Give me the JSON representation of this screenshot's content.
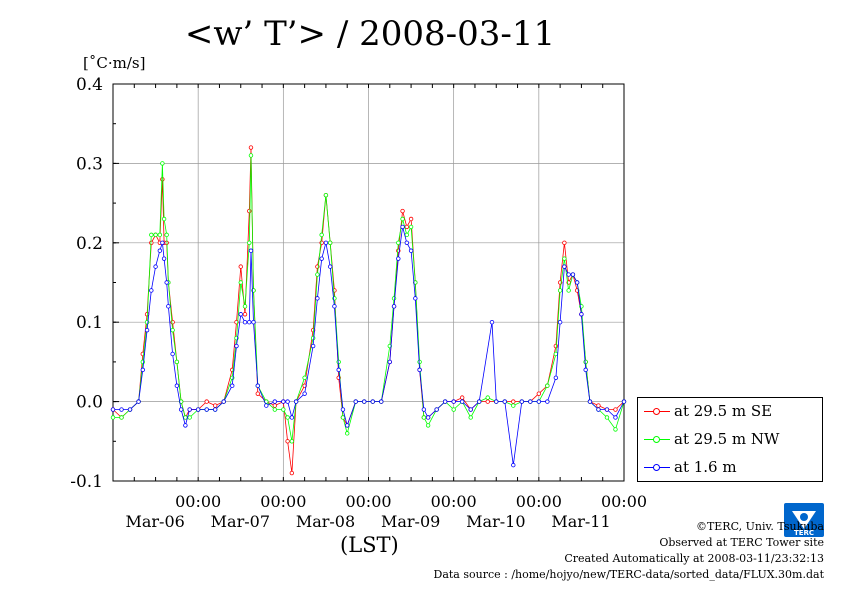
{
  "title": "<w’ T’> / 2008-03-11",
  "unit_label": "[˚C·m/s]",
  "x_axis_label": "(LST)",
  "legend": [
    {
      "label": "at 29.5 m SE",
      "color": "#ff0000"
    },
    {
      "label": "at 29.5 m NW",
      "color": "#00ff00"
    },
    {
      "label": "at 1.6 m",
      "color": "#0000ff"
    }
  ],
  "credits": {
    "copyright": "©TERC, Univ. Tsukuba",
    "site": "Observed at TERC Tower site",
    "created": "Created Automatically at 2008-03-11/23:32:13",
    "source": "Data source : /home/hojyo/new/TERC-data/sorted_data/FLUX.30m.dat"
  },
  "logo": {
    "text": "TERC",
    "color": "#0066cc",
    "icon": "terc-logo"
  },
  "chart_data": {
    "type": "line",
    "title": "<w’ T’> / 2008-03-11",
    "ylabel": "[˚C·m/s]",
    "xlabel": "(LST)",
    "xlim_days": [
      0,
      6
    ],
    "x_unit": "days from 2008-03-06 00:00 LST",
    "ylim": [
      -0.1,
      0.4
    ],
    "y_ticks": [
      -0.1,
      0.0,
      0.1,
      0.2,
      0.3,
      0.4
    ],
    "y_tick_labels": [
      "-0.1",
      "0.0",
      "0.1",
      "0.2",
      "0.3",
      "0.4"
    ],
    "x_ticks": [
      {
        "day": 1,
        "time": "00:00",
        "date": "Mar-06"
      },
      {
        "day": 2,
        "time": "00:00",
        "date": "Mar-07"
      },
      {
        "day": 3,
        "time": "00:00",
        "date": "Mar-08"
      },
      {
        "day": 4,
        "time": "00:00",
        "date": "Mar-09"
      },
      {
        "day": 5,
        "time": "00:00",
        "date": "Mar-10"
      },
      {
        "day": 6,
        "time": "00:00",
        "date": "Mar-11"
      }
    ],
    "grid": true,
    "legend_position": "right",
    "series": [
      {
        "name": "at 29.5 m SE",
        "color": "#ff0000",
        "points": [
          [
            0.0,
            -0.01
          ],
          [
            0.1,
            -0.02
          ],
          [
            0.2,
            -0.01
          ],
          [
            0.3,
            0.0
          ],
          [
            0.35,
            0.06
          ],
          [
            0.4,
            0.11
          ],
          [
            0.45,
            0.2
          ],
          [
            0.5,
            0.21
          ],
          [
            0.55,
            0.2
          ],
          [
            0.58,
            0.28
          ],
          [
            0.6,
            0.2
          ],
          [
            0.63,
            0.2
          ],
          [
            0.65,
            0.15
          ],
          [
            0.7,
            0.1
          ],
          [
            0.75,
            0.05
          ],
          [
            0.8,
            0.0
          ],
          [
            0.85,
            -0.02
          ],
          [
            0.9,
            -0.01
          ],
          [
            1.0,
            -0.01
          ],
          [
            1.1,
            0.0
          ],
          [
            1.2,
            -0.005
          ],
          [
            1.3,
            0.0
          ],
          [
            1.4,
            0.04
          ],
          [
            1.45,
            0.1
          ],
          [
            1.5,
            0.17
          ],
          [
            1.55,
            0.11
          ],
          [
            1.6,
            0.24
          ],
          [
            1.62,
            0.32
          ],
          [
            1.65,
            0.14
          ],
          [
            1.7,
            0.01
          ],
          [
            1.8,
            0.0
          ],
          [
            1.9,
            -0.005
          ],
          [
            2.0,
            0.0
          ],
          [
            2.05,
            -0.05
          ],
          [
            2.1,
            -0.09
          ],
          [
            2.15,
            0.0
          ],
          [
            2.25,
            0.02
          ],
          [
            2.35,
            0.09
          ],
          [
            2.4,
            0.17
          ],
          [
            2.45,
            0.2
          ],
          [
            2.5,
            0.26
          ],
          [
            2.55,
            0.2
          ],
          [
            2.6,
            0.14
          ],
          [
            2.65,
            0.03
          ],
          [
            2.7,
            -0.02
          ],
          [
            2.75,
            -0.03
          ],
          [
            2.85,
            0.0
          ],
          [
            2.95,
            0.0
          ],
          [
            3.05,
            0.0
          ],
          [
            3.15,
            0.0
          ],
          [
            3.25,
            0.05
          ],
          [
            3.3,
            0.12
          ],
          [
            3.35,
            0.19
          ],
          [
            3.4,
            0.24
          ],
          [
            3.45,
            0.22
          ],
          [
            3.5,
            0.23
          ],
          [
            3.55,
            0.15
          ],
          [
            3.6,
            0.04
          ],
          [
            3.65,
            -0.02
          ],
          [
            3.7,
            -0.02
          ],
          [
            3.8,
            -0.01
          ],
          [
            3.9,
            0.0
          ],
          [
            4.0,
            0.0
          ],
          [
            4.1,
            0.005
          ],
          [
            4.2,
            -0.01
          ],
          [
            4.3,
            0.0
          ],
          [
            4.4,
            0.0
          ],
          [
            4.5,
            0.0
          ],
          [
            4.6,
            0.0
          ],
          [
            4.7,
            0.0
          ],
          [
            4.8,
            0.0
          ],
          [
            4.9,
            0.0
          ],
          [
            5.0,
            0.01
          ],
          [
            5.1,
            0.02
          ],
          [
            5.2,
            0.07
          ],
          [
            5.25,
            0.15
          ],
          [
            5.3,
            0.2
          ],
          [
            5.35,
            0.15
          ],
          [
            5.4,
            0.16
          ],
          [
            5.45,
            0.14
          ],
          [
            5.5,
            0.11
          ],
          [
            5.55,
            0.05
          ],
          [
            5.6,
            0.0
          ],
          [
            5.7,
            -0.005
          ],
          [
            5.8,
            -0.01
          ],
          [
            5.9,
            -0.01
          ],
          [
            6.0,
            0.0
          ]
        ]
      },
      {
        "name": "at 29.5 m NW",
        "color": "#00ff00",
        "points": [
          [
            0.0,
            -0.02
          ],
          [
            0.1,
            -0.02
          ],
          [
            0.2,
            -0.01
          ],
          [
            0.3,
            0.0
          ],
          [
            0.35,
            0.05
          ],
          [
            0.4,
            0.1
          ],
          [
            0.45,
            0.21
          ],
          [
            0.5,
            0.21
          ],
          [
            0.55,
            0.21
          ],
          [
            0.58,
            0.3
          ],
          [
            0.6,
            0.23
          ],
          [
            0.63,
            0.21
          ],
          [
            0.65,
            0.15
          ],
          [
            0.7,
            0.09
          ],
          [
            0.75,
            0.05
          ],
          [
            0.8,
            0.0
          ],
          [
            0.85,
            -0.02
          ],
          [
            0.9,
            -0.02
          ],
          [
            1.0,
            -0.01
          ],
          [
            1.1,
            -0.01
          ],
          [
            1.2,
            -0.01
          ],
          [
            1.3,
            0.0
          ],
          [
            1.4,
            0.03
          ],
          [
            1.45,
            0.08
          ],
          [
            1.5,
            0.15
          ],
          [
            1.55,
            0.12
          ],
          [
            1.6,
            0.2
          ],
          [
            1.62,
            0.31
          ],
          [
            1.65,
            0.14
          ],
          [
            1.7,
            0.02
          ],
          [
            1.8,
            0.0
          ],
          [
            1.9,
            -0.01
          ],
          [
            2.0,
            -0.01
          ],
          [
            2.05,
            -0.02
          ],
          [
            2.1,
            -0.05
          ],
          [
            2.15,
            0.0
          ],
          [
            2.25,
            0.03
          ],
          [
            2.35,
            0.08
          ],
          [
            2.4,
            0.16
          ],
          [
            2.45,
            0.21
          ],
          [
            2.5,
            0.26
          ],
          [
            2.55,
            0.2
          ],
          [
            2.6,
            0.13
          ],
          [
            2.65,
            0.05
          ],
          [
            2.7,
            -0.02
          ],
          [
            2.75,
            -0.04
          ],
          [
            2.85,
            0.0
          ],
          [
            2.95,
            0.0
          ],
          [
            3.05,
            0.0
          ],
          [
            3.15,
            0.0
          ],
          [
            3.25,
            0.07
          ],
          [
            3.3,
            0.13
          ],
          [
            3.35,
            0.2
          ],
          [
            3.4,
            0.23
          ],
          [
            3.45,
            0.21
          ],
          [
            3.5,
            0.22
          ],
          [
            3.55,
            0.15
          ],
          [
            3.6,
            0.05
          ],
          [
            3.65,
            -0.02
          ],
          [
            3.7,
            -0.03
          ],
          [
            3.8,
            -0.01
          ],
          [
            3.9,
            0.0
          ],
          [
            4.0,
            -0.01
          ],
          [
            4.1,
            0.0
          ],
          [
            4.2,
            -0.02
          ],
          [
            4.3,
            0.0
          ],
          [
            4.4,
            0.005
          ],
          [
            4.5,
            0.0
          ],
          [
            4.6,
            0.0
          ],
          [
            4.7,
            -0.005
          ],
          [
            4.8,
            0.0
          ],
          [
            4.9,
            0.0
          ],
          [
            5.0,
            0.0
          ],
          [
            5.1,
            0.02
          ],
          [
            5.2,
            0.06
          ],
          [
            5.25,
            0.14
          ],
          [
            5.3,
            0.18
          ],
          [
            5.35,
            0.14
          ],
          [
            5.4,
            0.16
          ],
          [
            5.45,
            0.15
          ],
          [
            5.5,
            0.12
          ],
          [
            5.55,
            0.05
          ],
          [
            5.6,
            0.0
          ],
          [
            5.7,
            -0.01
          ],
          [
            5.8,
            -0.02
          ],
          [
            5.9,
            -0.035
          ],
          [
            6.0,
            0.0
          ]
        ]
      },
      {
        "name": "at 1.6 m",
        "color": "#0000ff",
        "points": [
          [
            0.0,
            -0.01
          ],
          [
            0.1,
            -0.01
          ],
          [
            0.2,
            -0.01
          ],
          [
            0.3,
            0.0
          ],
          [
            0.35,
            0.04
          ],
          [
            0.4,
            0.09
          ],
          [
            0.45,
            0.14
          ],
          [
            0.5,
            0.17
          ],
          [
            0.55,
            0.19
          ],
          [
            0.58,
            0.2
          ],
          [
            0.6,
            0.18
          ],
          [
            0.63,
            0.15
          ],
          [
            0.65,
            0.12
          ],
          [
            0.7,
            0.06
          ],
          [
            0.75,
            0.02
          ],
          [
            0.8,
            -0.01
          ],
          [
            0.85,
            -0.03
          ],
          [
            0.9,
            -0.01
          ],
          [
            1.0,
            -0.01
          ],
          [
            1.1,
            -0.01
          ],
          [
            1.2,
            -0.01
          ],
          [
            1.3,
            0.0
          ],
          [
            1.4,
            0.02
          ],
          [
            1.45,
            0.07
          ],
          [
            1.5,
            0.11
          ],
          [
            1.55,
            0.1
          ],
          [
            1.6,
            0.1
          ],
          [
            1.62,
            0.19
          ],
          [
            1.65,
            0.1
          ],
          [
            1.7,
            0.02
          ],
          [
            1.8,
            -0.005
          ],
          [
            1.9,
            0.0
          ],
          [
            2.0,
            0.0
          ],
          [
            2.05,
            0.0
          ],
          [
            2.1,
            -0.02
          ],
          [
            2.15,
            0.0
          ],
          [
            2.25,
            0.01
          ],
          [
            2.35,
            0.07
          ],
          [
            2.4,
            0.13
          ],
          [
            2.45,
            0.18
          ],
          [
            2.5,
            0.2
          ],
          [
            2.55,
            0.17
          ],
          [
            2.6,
            0.12
          ],
          [
            2.65,
            0.04
          ],
          [
            2.7,
            -0.01
          ],
          [
            2.75,
            -0.03
          ],
          [
            2.85,
            0.0
          ],
          [
            2.95,
            0.0
          ],
          [
            3.05,
            0.0
          ],
          [
            3.15,
            0.0
          ],
          [
            3.25,
            0.05
          ],
          [
            3.3,
            0.12
          ],
          [
            3.35,
            0.18
          ],
          [
            3.4,
            0.22
          ],
          [
            3.45,
            0.2
          ],
          [
            3.5,
            0.19
          ],
          [
            3.55,
            0.13
          ],
          [
            3.6,
            0.04
          ],
          [
            3.65,
            -0.01
          ],
          [
            3.7,
            -0.02
          ],
          [
            3.8,
            -0.01
          ],
          [
            3.9,
            0.0
          ],
          [
            4.0,
            0.0
          ],
          [
            4.1,
            0.0
          ],
          [
            4.2,
            -0.01
          ],
          [
            4.3,
            0.0
          ],
          [
            4.45,
            0.1
          ],
          [
            4.5,
            0.0
          ],
          [
            4.6,
            0.0
          ],
          [
            4.7,
            -0.08
          ],
          [
            4.8,
            0.0
          ],
          [
            4.9,
            0.0
          ],
          [
            5.0,
            0.0
          ],
          [
            5.1,
            0.0
          ],
          [
            5.2,
            0.03
          ],
          [
            5.25,
            0.1
          ],
          [
            5.3,
            0.17
          ],
          [
            5.35,
            0.16
          ],
          [
            5.4,
            0.16
          ],
          [
            5.45,
            0.15
          ],
          [
            5.5,
            0.11
          ],
          [
            5.55,
            0.04
          ],
          [
            5.6,
            0.0
          ],
          [
            5.7,
            -0.01
          ],
          [
            5.8,
            -0.01
          ],
          [
            5.9,
            -0.02
          ],
          [
            6.0,
            0.0
          ]
        ]
      }
    ]
  }
}
